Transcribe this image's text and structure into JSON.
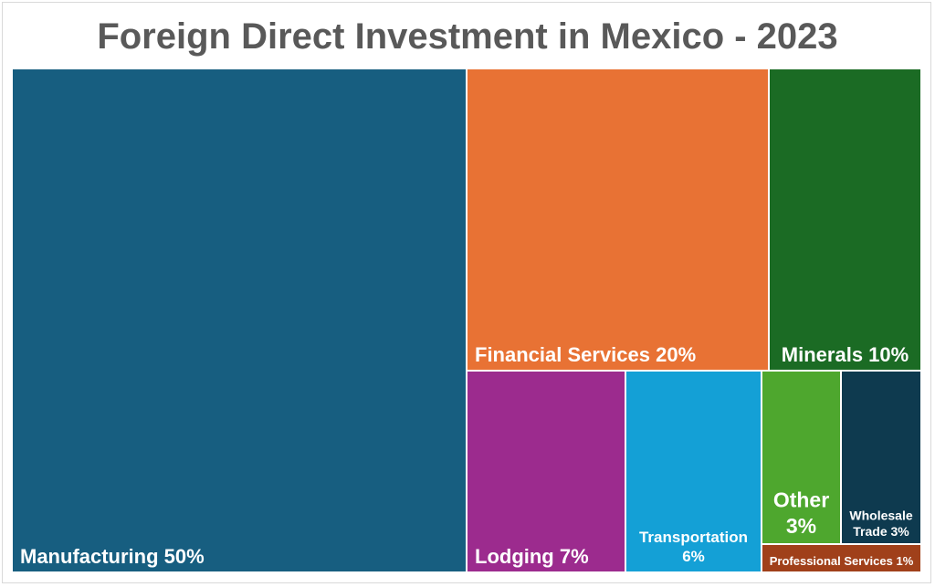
{
  "chart_data": {
    "type": "treemap",
    "title": "Foreign Direct Investment in Mexico - 2023",
    "items": [
      {
        "label": "Manufacturing 50%",
        "category": "Manufacturing",
        "value": 50,
        "color": "#175e80"
      },
      {
        "label": "Financial Services 20%",
        "category": "Financial Services",
        "value": 20,
        "color": "#e87234"
      },
      {
        "label": "Minerals 10%",
        "category": "Minerals",
        "value": 10,
        "color": "#1b6b24"
      },
      {
        "label": "Lodging 7%",
        "category": "Lodging",
        "value": 7,
        "color": "#9c2b8e"
      },
      {
        "label": "Transportation 6%",
        "category": "Transportation",
        "value": 6,
        "color": "#14a0d6"
      },
      {
        "label": "Other 3%",
        "category": "Other",
        "value": 3,
        "color": "#4ea72e"
      },
      {
        "label": "Wholesale Trade 3%",
        "category": "Wholesale Trade",
        "value": 3,
        "color": "#0e3a4f"
      },
      {
        "label": "Professional Services 1%",
        "category": "Professional Services",
        "value": 1,
        "color": "#a0401a"
      }
    ],
    "title_color": "#595959",
    "label_color": "#ffffff"
  }
}
